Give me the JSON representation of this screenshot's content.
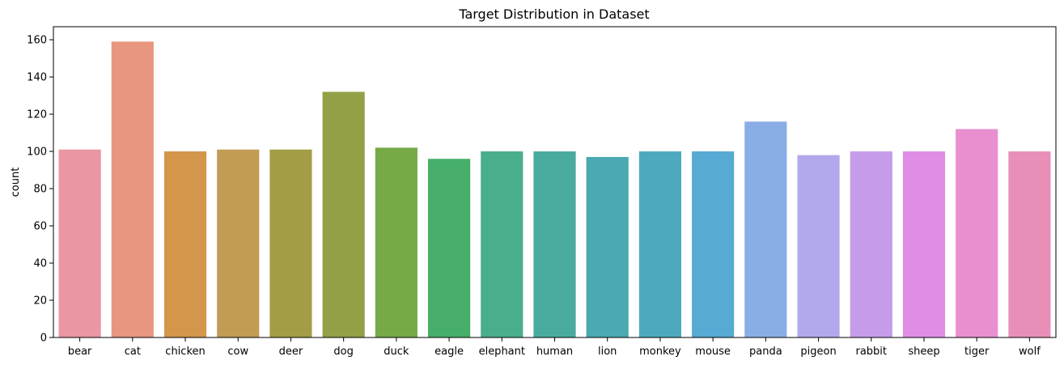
{
  "chart_data": {
    "type": "bar",
    "title": "Target Distribution in Dataset",
    "xlabel": "",
    "ylabel": "count",
    "categories": [
      "bear",
      "cat",
      "chicken",
      "cow",
      "deer",
      "dog",
      "duck",
      "eagle",
      "elephant",
      "human",
      "lion",
      "monkey",
      "mouse",
      "panda",
      "pigeon",
      "rabbit",
      "sheep",
      "tiger",
      "wolf"
    ],
    "values": [
      101,
      159,
      100,
      101,
      101,
      132,
      102,
      96,
      100,
      100,
      97,
      100,
      100,
      116,
      98,
      100,
      100,
      112,
      100
    ],
    "colors": [
      "#ea96a3",
      "#e8967f",
      "#d4964b",
      "#c29c54",
      "#a39e45",
      "#93a045",
      "#76aa47",
      "#47ae6a",
      "#4aad8b",
      "#49ab9e",
      "#4aa9b1",
      "#4daabe",
      "#56aad4",
      "#89aee7",
      "#b2a9ec",
      "#c69cea",
      "#e08de6",
      "#e98fcf",
      "#e88fb8"
    ],
    "yticks": [
      0,
      20,
      40,
      60,
      80,
      100,
      120,
      140,
      160
    ],
    "ylim": [
      0,
      167
    ],
    "grid": false,
    "legend": "none"
  }
}
